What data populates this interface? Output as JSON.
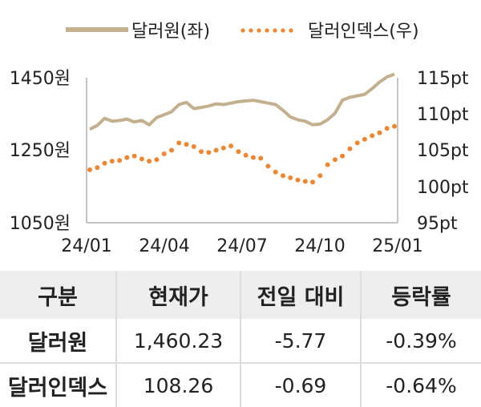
{
  "chart_data": {
    "type": "line",
    "x_ticks": [
      "24/01",
      "24/04",
      "24/07",
      "24/10",
      "25/01"
    ],
    "y_left": {
      "ticks": [
        "1450원",
        "1250원",
        "1050원"
      ],
      "range": [
        1050,
        1450
      ]
    },
    "y_right": {
      "ticks": [
        "115pt",
        "110pt",
        "105pt",
        "100pt",
        "95pt"
      ],
      "range": [
        95,
        115
      ]
    },
    "series": [
      {
        "name": "달러원(좌)",
        "axis": "left",
        "style": "line",
        "color": "#c2b08e",
        "x": [
          "24/01",
          "24/01",
          "24/01",
          "24/01",
          "24/02",
          "24/02",
          "24/02",
          "24/03",
          "24/03",
          "24/03",
          "24/04",
          "24/04",
          "24/04",
          "24/04",
          "24/05",
          "24/05",
          "24/05",
          "24/06",
          "24/06",
          "24/06",
          "24/07",
          "24/07",
          "24/07",
          "24/07",
          "24/08",
          "24/08",
          "24/08",
          "24/09",
          "24/09",
          "24/09",
          "24/10",
          "24/10",
          "24/10",
          "24/10",
          "24/11",
          "24/11",
          "24/11",
          "24/12",
          "24/12",
          "24/12",
          "24/12",
          "25/01"
        ],
        "values": [
          1308,
          1318,
          1338,
          1330,
          1332,
          1336,
          1328,
          1332,
          1320,
          1340,
          1348,
          1356,
          1376,
          1382,
          1365,
          1368,
          1372,
          1378,
          1376,
          1380,
          1384,
          1386,
          1388,
          1384,
          1380,
          1376,
          1360,
          1342,
          1334,
          1330,
          1320,
          1322,
          1334,
          1352,
          1388,
          1396,
          1400,
          1404,
          1420,
          1438,
          1452,
          1460
        ]
      },
      {
        "name": "달러인덱스(우)",
        "axis": "right",
        "style": "dotted",
        "color": "#ed8731",
        "x": [
          "24/01",
          "24/01",
          "24/01",
          "24/01",
          "24/02",
          "24/02",
          "24/02",
          "24/03",
          "24/03",
          "24/03",
          "24/04",
          "24/04",
          "24/04",
          "24/04",
          "24/05",
          "24/05",
          "24/05",
          "24/06",
          "24/06",
          "24/06",
          "24/07",
          "24/07",
          "24/07",
          "24/07",
          "24/08",
          "24/08",
          "24/08",
          "24/09",
          "24/09",
          "24/09",
          "24/10",
          "24/10",
          "24/10",
          "24/10",
          "24/11",
          "24/11",
          "24/11",
          "24/12",
          "24/12",
          "24/12",
          "24/12",
          "25/01"
        ],
        "values": [
          102.3,
          102.6,
          103.2,
          103.5,
          103.6,
          104.0,
          104.2,
          103.8,
          103.5,
          103.7,
          104.5,
          105.0,
          106.0,
          105.8,
          105.5,
          104.8,
          104.7,
          105.0,
          105.3,
          105.6,
          104.8,
          104.3,
          104.0,
          103.9,
          102.8,
          102.0,
          101.5,
          101.2,
          100.9,
          100.7,
          100.6,
          101.5,
          103.0,
          103.7,
          104.2,
          105.2,
          106.0,
          106.5,
          107.0,
          107.4,
          108.0,
          108.3
        ]
      }
    ],
    "legend_position": "top"
  },
  "table": {
    "headers": [
      "구분",
      "현재가",
      "전일 대비",
      "등락률"
    ],
    "rows": [
      {
        "name": "달러원",
        "price": "1,460.23",
        "change": "-5.77",
        "rate": "-0.39%"
      },
      {
        "name": "달러인덱스",
        "price": "108.26",
        "change": "-0.69",
        "rate": "-0.64%"
      }
    ]
  }
}
